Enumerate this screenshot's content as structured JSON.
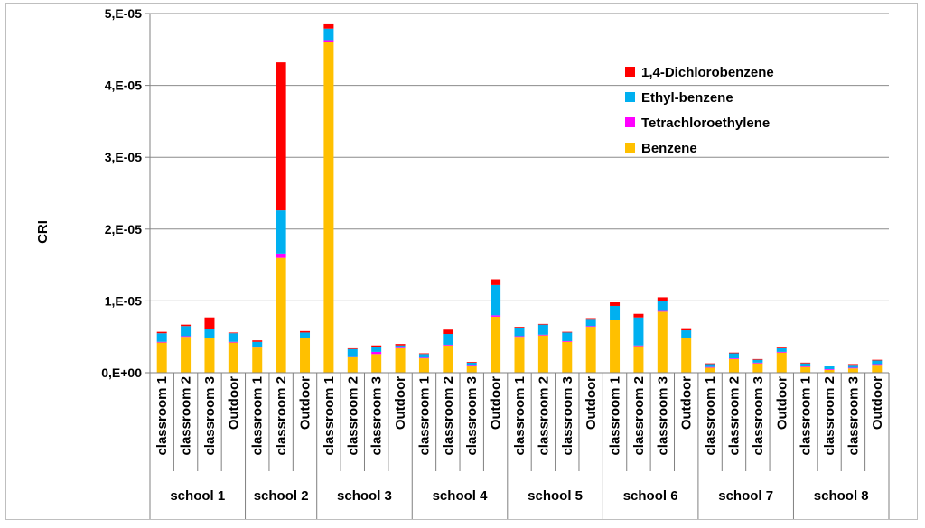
{
  "chart_data": {
    "type": "bar",
    "stacked": true,
    "title": "",
    "xlabel": "",
    "ylabel": "CRI",
    "ylim": [
      0,
      5e-05
    ],
    "ytick_values": [
      0,
      1e-05,
      2e-05,
      3e-05,
      4e-05,
      5e-05
    ],
    "ytick_labels": [
      "0,E+00",
      "1,E-05",
      "2,E-05",
      "3,E-05",
      "4,E-05",
      "5,E-05"
    ],
    "grid": true,
    "legend_position": "top-right",
    "colors": {
      "Benzene": "#FFC000",
      "Tetrachloroethylene": "#FF00FF",
      "Ethyl-benzene": "#00B0F0",
      "1,4-Dichlorobenzene": "#FF0000"
    },
    "legend_order": [
      "1,4-Dichlorobenzene",
      "Ethyl-benzene",
      "Tetrachloroethylene",
      "Benzene"
    ],
    "groups": [
      {
        "name": "school 1",
        "categories": [
          "classroom 1",
          "classroom 2",
          "classroom 3",
          "Outdoor"
        ]
      },
      {
        "name": "school 2",
        "categories": [
          "classroom 1",
          "classroom 2",
          "Outdoor"
        ]
      },
      {
        "name": "school 3",
        "categories": [
          "classroom 1",
          "classroom 2",
          "classroom 3",
          "Outdoor"
        ]
      },
      {
        "name": "school 4",
        "categories": [
          "classroom 1",
          "classroom 2",
          "classroom 3",
          "Outdoor"
        ]
      },
      {
        "name": "school 5",
        "categories": [
          "classroom 1",
          "classroom 2",
          "classroom 3",
          "Outdoor"
        ]
      },
      {
        "name": "school 6",
        "categories": [
          "classroom 1",
          "classroom 2",
          "classroom 3",
          "Outdoor"
        ]
      },
      {
        "name": "school 7",
        "categories": [
          "classroom 1",
          "classroom 2",
          "classroom 3",
          "Outdoor"
        ]
      },
      {
        "name": "school 8",
        "categories": [
          "classroom 1",
          "classroom 2",
          "classroom 3",
          "Outdoor"
        ]
      }
    ],
    "series": [
      {
        "name": "Benzene",
        "values": [
          4.2e-06,
          5e-06,
          4.8e-06,
          4.2e-06,
          3.5e-06,
          1.6e-05,
          4.8e-06,
          4.6e-05,
          2.2e-06,
          2.6e-06,
          3.4e-06,
          2e-06,
          3.8e-06,
          1e-06,
          7.8e-06,
          5e-06,
          5.2e-06,
          4.3e-06,
          6.4e-06,
          7.3e-06,
          3.7e-06,
          8.5e-06,
          4.8e-06,
          7e-07,
          1.9e-06,
          1.3e-06,
          2.8e-06,
          8e-07,
          4e-07,
          6e-07,
          1.1e-06
        ]
      },
      {
        "name": "Tetrachloroethylene",
        "values": [
          1e-07,
          1e-07,
          1e-07,
          1e-07,
          1e-07,
          6e-07,
          1e-07,
          3e-07,
          1e-07,
          3e-07,
          1e-07,
          1e-07,
          1e-07,
          1e-07,
          2e-07,
          1e-07,
          1e-07,
          1e-07,
          1e-07,
          1e-07,
          1e-07,
          1e-07,
          1e-07,
          1e-07,
          1e-07,
          1e-07,
          1e-07,
          1e-07,
          1e-07,
          1e-07,
          1e-07
        ]
      },
      {
        "name": "Ethyl-benzene",
        "values": [
          1.2e-06,
          1.4e-06,
          1.2e-06,
          1.2e-06,
          7e-07,
          6e-06,
          7e-07,
          1.6e-06,
          1e-06,
          7e-07,
          3e-07,
          5e-07,
          1.5e-06,
          3e-07,
          4.2e-06,
          1.2e-06,
          1.4e-06,
          1.2e-06,
          1e-06,
          1.9e-06,
          3.9e-06,
          1.4e-06,
          1e-06,
          4e-07,
          7e-07,
          4e-07,
          5e-07,
          4e-07,
          4e-07,
          4e-07,
          5e-07
        ]
      },
      {
        "name": "1,4-Dichlorobenzene",
        "values": [
          2e-07,
          2e-07,
          1.6e-06,
          1e-07,
          2e-07,
          2.06e-05,
          2e-07,
          6e-07,
          1e-07,
          2e-07,
          2e-07,
          1e-07,
          6e-07,
          1e-07,
          8e-07,
          1e-07,
          1e-07,
          1e-07,
          1e-07,
          5e-07,
          5e-07,
          5e-07,
          3e-07,
          1e-07,
          1e-07,
          1e-07,
          1e-07,
          1e-07,
          1e-07,
          1e-07,
          1e-07
        ]
      }
    ]
  }
}
